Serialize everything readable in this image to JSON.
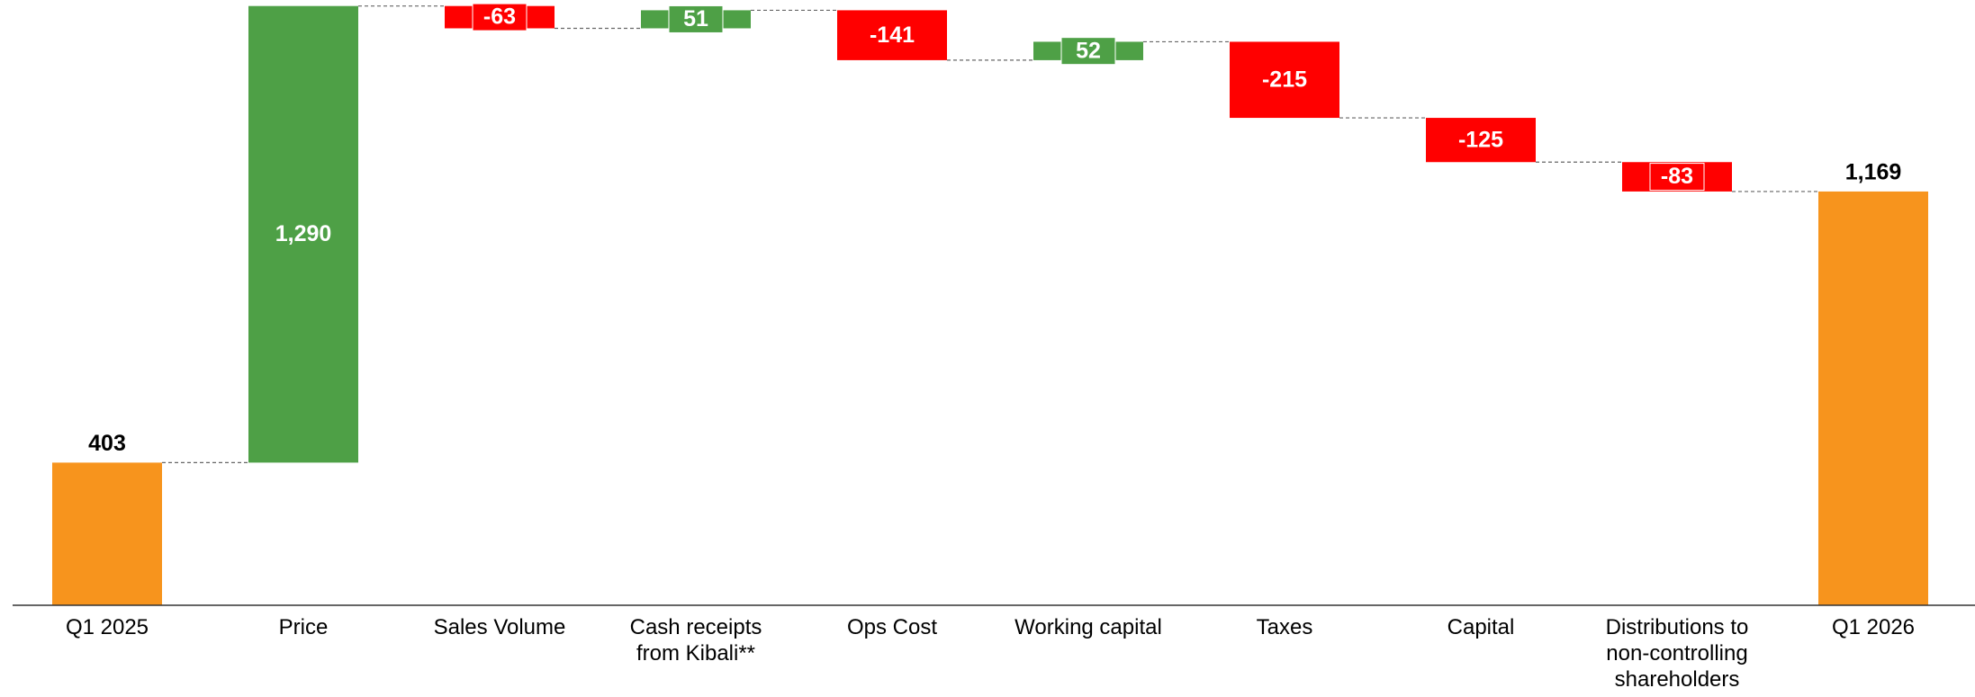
{
  "chart_data": {
    "type": "waterfall",
    "categories": [
      "Q1 2025",
      "Price",
      "Sales Volume",
      "Cash receipts from Kibali**",
      "Ops Cost",
      "Working capital",
      "Taxes",
      "Capital",
      "Distributions to non-controlling shareholders",
      "Q1 2026"
    ],
    "measure": [
      "absolute",
      "relative",
      "relative",
      "relative",
      "relative",
      "relative",
      "relative",
      "relative",
      "relative",
      "total"
    ],
    "values": [
      403,
      1290,
      -63,
      51,
      -141,
      52,
      -215,
      -125,
      -83,
      1169
    ],
    "value_labels": [
      "403",
      "1,290",
      "-63",
      "51",
      "-141",
      "52",
      "-215",
      "-125",
      "-83",
      "1,169"
    ],
    "total_color": "#f7941d",
    "increase_color": "#4ea046",
    "decrease_color": "#ff0000",
    "ylim": [
      0,
      1710
    ]
  }
}
